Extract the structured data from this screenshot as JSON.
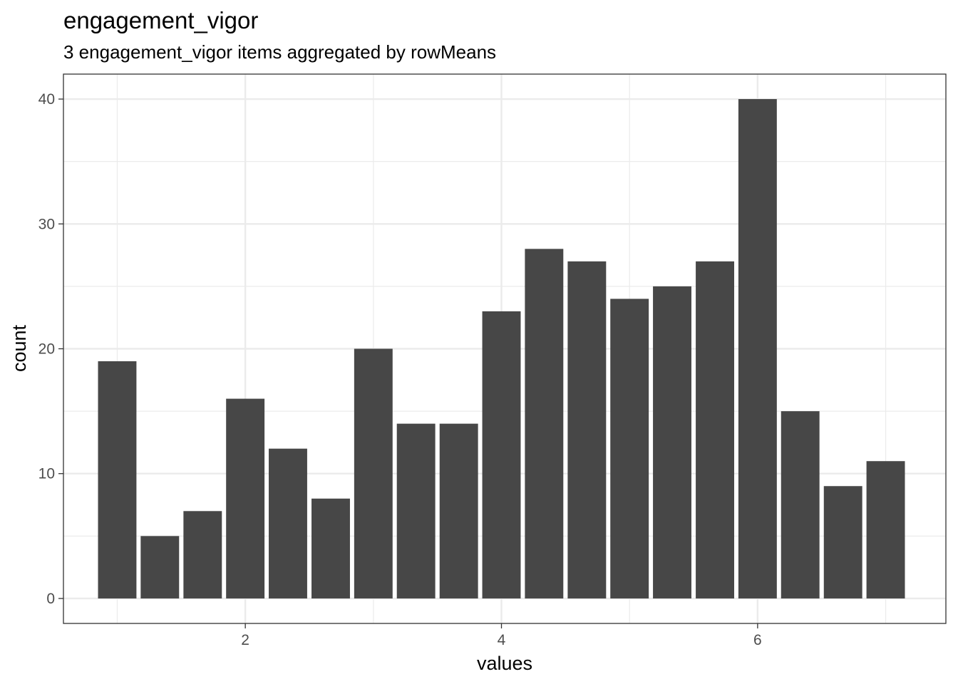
{
  "chart_data": {
    "type": "bar",
    "title": "engagement_vigor",
    "subtitle": "3 engagement_vigor items aggregated by rowMeans",
    "xlabel": "values",
    "ylabel": "count",
    "x": [
      1.0,
      1.333,
      1.667,
      2.0,
      2.333,
      2.667,
      3.0,
      3.333,
      3.667,
      4.0,
      4.333,
      4.667,
      5.0,
      5.333,
      5.667,
      6.0,
      6.333,
      6.667,
      7.0
    ],
    "values": [
      19,
      5,
      7,
      16,
      12,
      8,
      20,
      14,
      14,
      23,
      28,
      27,
      24,
      25,
      27,
      40,
      15,
      9,
      11
    ],
    "xlim": [
      0.58,
      7.47
    ],
    "ylim": [
      -2,
      42
    ],
    "xticks": [
      2,
      4,
      6
    ],
    "yticks": [
      0,
      10,
      20,
      30,
      40
    ],
    "bar_color": "#474747",
    "grid_color": "#ebebeb",
    "grid": true,
    "legend": "none"
  }
}
